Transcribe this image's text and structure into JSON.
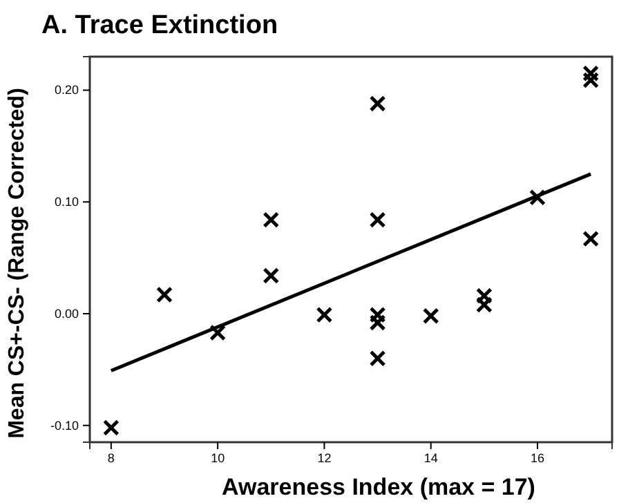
{
  "chart_data": {
    "type": "scatter",
    "title": "A. Trace Extinction",
    "xlabel": "Awareness Index (max = 17)",
    "ylabel": "Mean CS+-CS- (Range Corrected)",
    "xlim": [
      7.6,
      17.4
    ],
    "xticks": [
      8,
      10,
      12,
      14,
      16
    ],
    "ylim": [
      -0.115,
      0.23
    ],
    "yticks": [
      {
        "value": -0.1,
        "label": "-0.10"
      },
      {
        "value": 0,
        "label": "0.00"
      },
      {
        "value": 0.1,
        "label": "0.10"
      },
      {
        "value": 0.2,
        "label": "0.20"
      }
    ],
    "grid": false,
    "series": [
      {
        "color": "#000000",
        "marker": "cross",
        "x": [
          8,
          9,
          10,
          11,
          11,
          12,
          13,
          13,
          13,
          13,
          13,
          14,
          15,
          15,
          16,
          17,
          17,
          17
        ],
        "values": [
          -0.102,
          0.017,
          -0.017,
          0.084,
          0.034,
          -0.001,
          0.188,
          0.084,
          -0.001,
          -0.008,
          -0.04,
          -0.002,
          0.016,
          0.008,
          0.104,
          0.215,
          0.209,
          0.067
        ]
      },
      {
        "type": "line",
        "marker": "none",
        "color": "#000000",
        "x": [
          8,
          17
        ],
        "values": [
          -0.051,
          0.125
        ]
      }
    ]
  }
}
